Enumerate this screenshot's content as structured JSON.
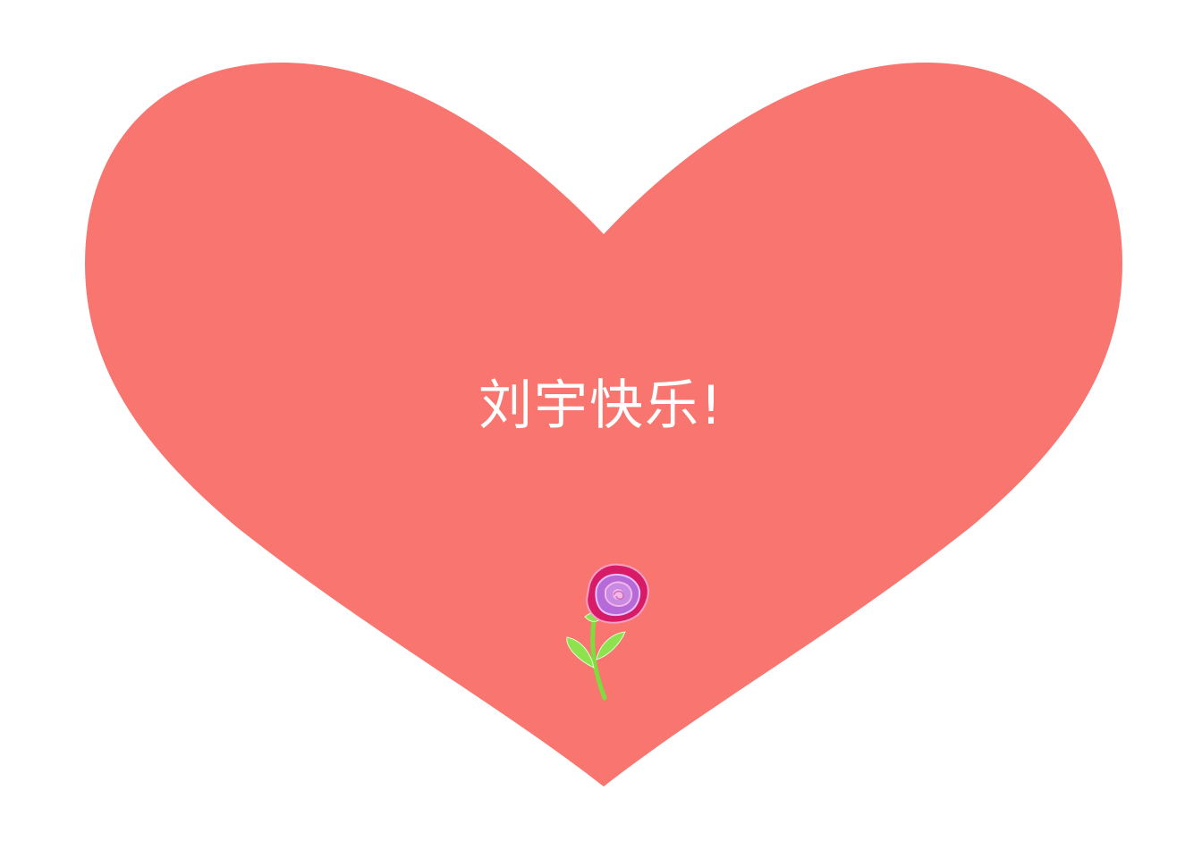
{
  "card": {
    "greeting": "刘宇快乐!"
  },
  "colors": {
    "background": "#ffffff",
    "heart": "#f8766f",
    "text": "#ffffff",
    "petal_outer": "#d81b66",
    "petal_inner": "#b56ad8",
    "petal_highlight": "#f2b6ea",
    "stem": "#7fdc3f",
    "leaf": "#8de24e"
  },
  "icons": {
    "heart": "heart-shape",
    "flower": "rose-icon"
  }
}
